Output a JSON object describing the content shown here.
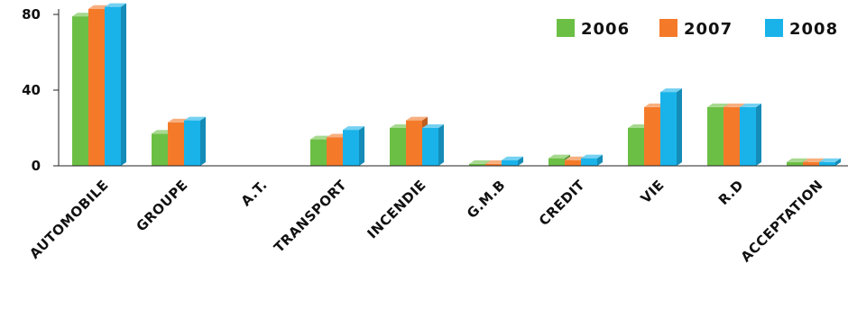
{
  "chart_data": {
    "type": "bar",
    "categories": [
      "AUTOMOBILE",
      "GROUPE",
      "A.T.",
      "TRANSPORT",
      "INCENDIE",
      "G.M.B",
      "CREDIT",
      "VIE",
      "R.D",
      "ACCEPTATION"
    ],
    "series": [
      {
        "name": "2006",
        "color": "#6cbf45",
        "values": [
          79,
          17,
          0,
          14,
          20,
          1,
          4,
          20,
          31,
          2
        ]
      },
      {
        "name": "2007",
        "color": "#f47a2a",
        "values": [
          83,
          23,
          0,
          15,
          24,
          1,
          3,
          31,
          31,
          2
        ]
      },
      {
        "name": "2008",
        "color": "#19b3ea",
        "values": [
          84,
          24,
          0,
          19,
          20,
          3,
          4,
          39,
          31,
          2
        ]
      }
    ],
    "yticks": [
      0,
      40,
      80
    ],
    "ylim": [
      0,
      85
    ],
    "grid": false,
    "legend": "top-right"
  }
}
